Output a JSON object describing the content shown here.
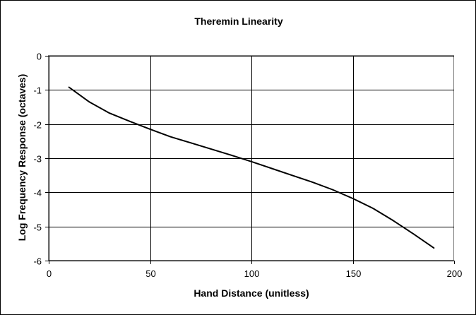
{
  "chart_data": {
    "type": "line",
    "title": "Theremin Linearity",
    "xlabel": "Hand Distance (unitless)",
    "ylabel": "Log Frequency Response (octaves)",
    "xlim": [
      0,
      200
    ],
    "ylim": [
      -6,
      0
    ],
    "x_ticks": [
      0,
      50,
      100,
      150,
      200
    ],
    "y_ticks": [
      0,
      -1,
      -2,
      -3,
      -4,
      -5,
      -6
    ],
    "grid": "major gridlines on both axes",
    "legend": "none",
    "series": [
      {
        "color": "#000000",
        "x": [
          10,
          20,
          30,
          40,
          50,
          60,
          70,
          80,
          90,
          100,
          110,
          120,
          130,
          140,
          150,
          160,
          170,
          180,
          190
        ],
        "y": [
          -0.92,
          -1.35,
          -1.68,
          -1.92,
          -2.15,
          -2.37,
          -2.55,
          -2.73,
          -2.91,
          -3.1,
          -3.3,
          -3.5,
          -3.7,
          -3.92,
          -4.18,
          -4.47,
          -4.83,
          -5.22,
          -5.63
        ]
      }
    ]
  }
}
